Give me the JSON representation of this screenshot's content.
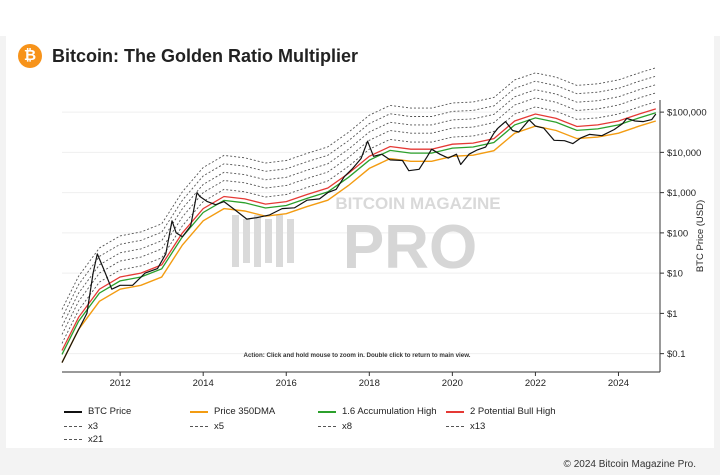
{
  "header": {
    "logo_glyph": "₿",
    "title": "Bitcoin: The Golden Ratio Multiplier"
  },
  "footer": {
    "copyright": "© 2024 Bitcoin Magazine Pro."
  },
  "watermark": {
    "top": "BITCOIN MAGAZINE",
    "main": "PRO"
  },
  "colors": {
    "btc": "#111111",
    "dma": "#f39c12",
    "acc": "#2ca02c",
    "bull": "#e53935",
    "mult": "#555555",
    "brand": "#f7931a"
  },
  "chart_data": {
    "type": "line",
    "title": "Bitcoin: The Golden Ratio Multiplier",
    "annotation": "Action: Click and hold mouse to zoom in.  Double click to return to main view.",
    "ylabel": "BTC Price (USD)",
    "yscale": "log",
    "xlim": [
      2010.6,
      2025.0
    ],
    "ylim": [
      0.035,
      200000
    ],
    "x_ticks": [
      "2012",
      "2014",
      "2016",
      "2018",
      "2020",
      "2022",
      "2024"
    ],
    "y_ticks": [
      {
        "label": "$100,000",
        "value": 100000
      },
      {
        "label": "$10,000",
        "value": 10000
      },
      {
        "label": "$1,000",
        "value": 1000
      },
      {
        "label": "$100",
        "value": 100
      },
      {
        "label": "$10",
        "value": 10
      },
      {
        "label": "$1",
        "value": 1
      },
      {
        "label": "$0.1",
        "value": 0.1
      }
    ],
    "btc_price": {
      "x": [
        2010.6,
        2010.9,
        2011.2,
        2011.35,
        2011.45,
        2011.6,
        2011.8,
        2012.0,
        2012.3,
        2012.6,
        2012.9,
        2013.1,
        2013.25,
        2013.35,
        2013.5,
        2013.7,
        2013.85,
        2013.92,
        2014.1,
        2014.3,
        2014.5,
        2014.8,
        2015.05,
        2015.3,
        2015.6,
        2015.9,
        2016.2,
        2016.5,
        2016.8,
        2017.0,
        2017.2,
        2017.4,
        2017.6,
        2017.8,
        2017.96,
        2018.1,
        2018.3,
        2018.5,
        2018.8,
        2018.95,
        2019.2,
        2019.4,
        2019.5,
        2019.7,
        2019.9,
        2020.1,
        2020.2,
        2020.4,
        2020.6,
        2020.8,
        2021.0,
        2021.1,
        2021.28,
        2021.45,
        2021.6,
        2021.85,
        2022.0,
        2022.2,
        2022.45,
        2022.7,
        2022.9,
        2023.1,
        2023.3,
        2023.6,
        2023.9,
        2024.1,
        2024.2,
        2024.4,
        2024.6,
        2024.8,
        2024.9
      ],
      "y": [
        0.06,
        0.25,
        1,
        10,
        30,
        13,
        4,
        5,
        5,
        10,
        13,
        30,
        200,
        100,
        80,
        150,
        1000,
        800,
        600,
        500,
        600,
        350,
        220,
        240,
        280,
        400,
        420,
        650,
        700,
        1000,
        1200,
        2500,
        4000,
        7000,
        19000,
        8000,
        9000,
        6500,
        6300,
        3500,
        3800,
        8000,
        12000,
        9000,
        7200,
        9000,
        5000,
        9000,
        11500,
        13500,
        30000,
        40000,
        58000,
        35000,
        32000,
        64000,
        45000,
        40000,
        20000,
        19500,
        16500,
        23000,
        28000,
        26000,
        37000,
        52000,
        70000,
        60000,
        58000,
        65000,
        90000
      ]
    },
    "series_dma_350": {
      "x": [
        2010.6,
        2011.0,
        2011.5,
        2012.0,
        2012.5,
        2013.0,
        2013.5,
        2014.0,
        2014.5,
        2015.0,
        2015.5,
        2016.0,
        2016.5,
        2017.0,
        2017.5,
        2018.0,
        2018.5,
        2019.0,
        2019.5,
        2020.0,
        2020.5,
        2021.0,
        2021.5,
        2022.0,
        2022.5,
        2023.0,
        2023.5,
        2024.0,
        2024.5,
        2024.9
      ],
      "y": [
        0.06,
        0.4,
        2,
        4,
        5,
        8,
        50,
        200,
        400,
        350,
        260,
        300,
        450,
        650,
        1500,
        4000,
        7000,
        6000,
        6000,
        8000,
        8500,
        11000,
        30000,
        45000,
        35000,
        22000,
        24000,
        30000,
        45000,
        60000
      ]
    },
    "legend": [
      "BTC Price",
      "Price 350DMA",
      "1.6 Accumulation High",
      "2 Potential Bull High",
      "x3",
      "x5",
      "x8",
      "x13",
      "x21"
    ],
    "multipliers": {
      "acc": 1.6,
      "bull": 2,
      "x3": 3,
      "x5": 5,
      "x8": 8,
      "x13": 13,
      "x21": 21
    }
  }
}
